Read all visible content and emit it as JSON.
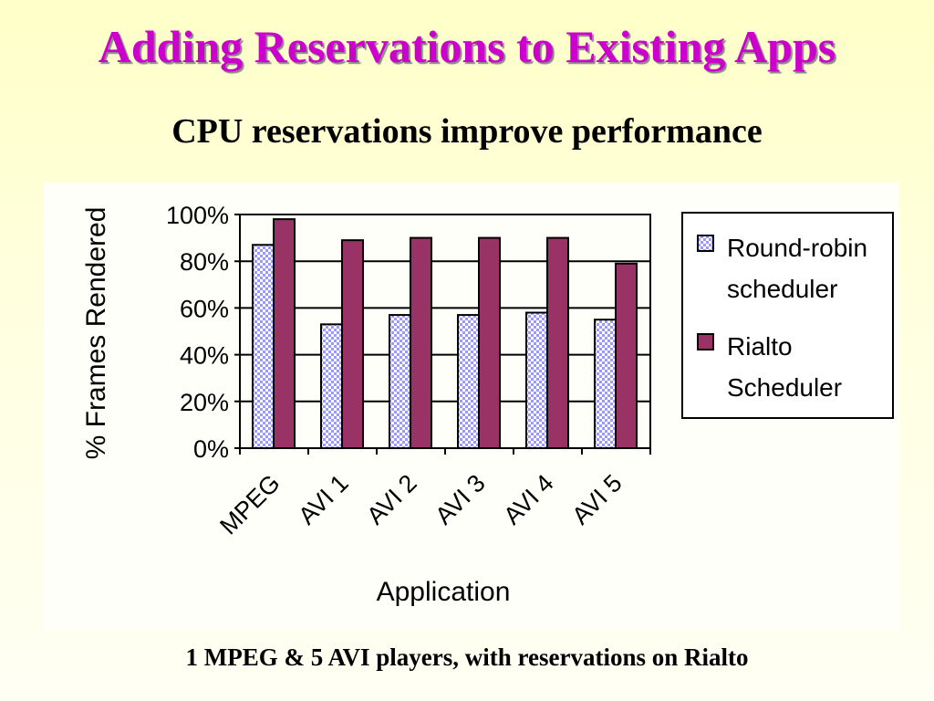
{
  "slide": {
    "title": "Adding Reservations to Existing Apps",
    "subtitle": "CPU reservations improve performance",
    "footer": "1 MPEG & 5 AVI players, with reservations on Rialto"
  },
  "chart_data": {
    "type": "bar",
    "title": "",
    "xlabel": "Application",
    "ylabel": "% Frames Rendered",
    "categories": [
      "MPEG",
      "AVI 1",
      "AVI 2",
      "AVI 3",
      "AVI 4",
      "AVI 5"
    ],
    "series": [
      {
        "name": "Round-robin scheduler",
        "legend_lines": [
          "Round-robin",
          "scheduler"
        ],
        "values": [
          87,
          53,
          57,
          57,
          58,
          55
        ],
        "color": "#9999ff",
        "pattern": "checker"
      },
      {
        "name": "Rialto Scheduler",
        "legend_lines": [
          "Rialto",
          "Scheduler"
        ],
        "values": [
          98,
          89,
          90,
          90,
          90,
          79
        ],
        "color": "#993366"
      }
    ],
    "ylim": [
      0,
      100
    ],
    "yticks": [
      "0%",
      "20%",
      "40%",
      "60%",
      "80%",
      "100%"
    ],
    "grid": true,
    "legend": "right"
  }
}
